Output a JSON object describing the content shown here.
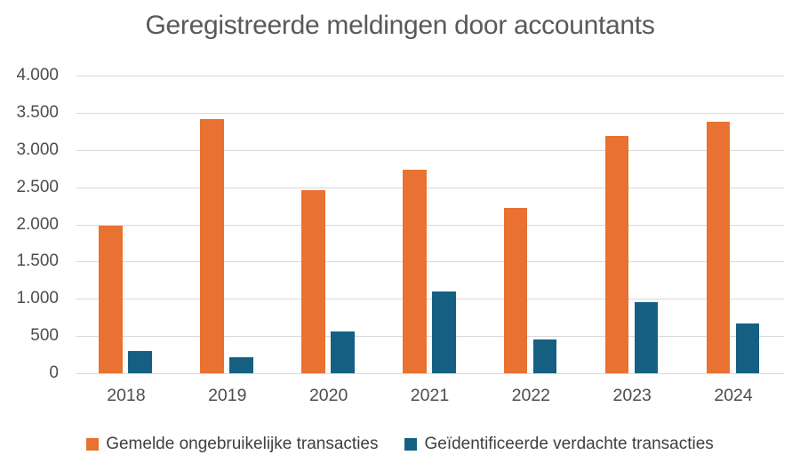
{
  "chart_data": {
    "type": "bar",
    "title": "Geregistreerde meldingen door accountants",
    "categories": [
      "2018",
      "2019",
      "2020",
      "2021",
      "2022",
      "2023",
      "2024"
    ],
    "series": [
      {
        "name": "Gemelde ongebruikelijke transacties",
        "key": "unusual",
        "color": "#E97132",
        "values": [
          1980,
          3420,
          2460,
          2730,
          2220,
          3190,
          3380
        ]
      },
      {
        "name": "Geïdentificeerde verdachte transacties",
        "key": "suspicious",
        "color": "#156082",
        "values": [
          300,
          210,
          560,
          1100,
          450,
          950,
          670
        ]
      }
    ],
    "xlabel": "",
    "ylabel": "",
    "ylim": [
      0,
      4000
    ],
    "ytick_step": 500,
    "ytick_labels": [
      "0",
      "500",
      "1.000",
      "1.500",
      "2.000",
      "2.500",
      "3.000",
      "3.500",
      "4.000"
    ],
    "grid": true,
    "legend_position": "bottom",
    "colors": {
      "gridline": "#D9D9D9",
      "title_text": "#595959",
      "axis_text": "#4D4D4D",
      "legend_text": "#404040",
      "background": "#FFFFFF"
    }
  }
}
